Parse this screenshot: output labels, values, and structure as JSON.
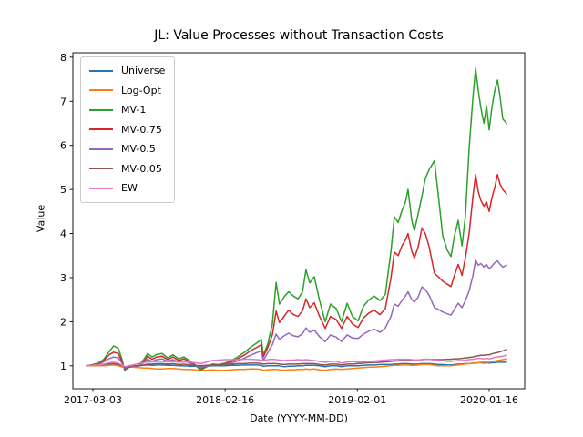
{
  "figure": {
    "background": "#ffffff"
  },
  "chart_data": {
    "type": "line",
    "title": "JL: Value Processes without Transaction Costs",
    "xlabel": "Date (YYYY-MM-DD)",
    "ylabel": "Value",
    "grid": false,
    "legend_position": "upper left",
    "x_tick_labels": [
      "2017-03-03",
      "2018-02-16",
      "2019-02-01",
      "2020-01-16"
    ],
    "y_tick_labels": [
      "1",
      "2",
      "3",
      "4",
      "5",
      "6",
      "7",
      "8"
    ],
    "ylim": [
      0.48,
      8.1
    ],
    "xlim_dates": [
      "2017-01-09",
      "2020-04-19"
    ],
    "dates": [
      "2017-02-14",
      "2017-03-03",
      "2017-03-17",
      "2017-04-01",
      "2017-04-15",
      "2017-04-27",
      "2017-05-09",
      "2017-05-19",
      "2017-05-26",
      "2017-06-05",
      "2017-06-17",
      "2017-07-01",
      "2017-07-16",
      "2017-07-26",
      "2017-08-07",
      "2017-08-19",
      "2017-09-02",
      "2017-09-17",
      "2017-10-01",
      "2017-10-16",
      "2017-10-30",
      "2017-11-14",
      "2017-11-28",
      "2017-12-13",
      "2017-12-27",
      "2018-01-13",
      "2018-01-30",
      "2018-02-16",
      "2018-03-04",
      "2018-03-21",
      "2018-04-07",
      "2018-04-24",
      "2018-05-11",
      "2018-05-23",
      "2018-05-28",
      "2018-06-09",
      "2018-06-21",
      "2018-07-01",
      "2018-07-10",
      "2018-07-22",
      "2018-08-03",
      "2018-08-16",
      "2018-08-28",
      "2018-09-09",
      "2018-09-18",
      "2018-09-28",
      "2018-10-10",
      "2018-10-24",
      "2018-11-08",
      "2018-11-22",
      "2018-12-07",
      "2018-12-21",
      "2019-01-05",
      "2019-01-19",
      "2019-02-03",
      "2019-02-17",
      "2019-03-04",
      "2019-03-18",
      "2019-04-02",
      "2019-04-16",
      "2019-05-01",
      "2019-05-10",
      "2019-05-20",
      "2019-05-30",
      "2019-06-08",
      "2019-06-15",
      "2019-06-25",
      "2019-07-02",
      "2019-07-12",
      "2019-07-22",
      "2019-07-31",
      "2019-08-10",
      "2019-08-24",
      "2019-09-03",
      "2019-09-15",
      "2019-09-27",
      "2019-10-07",
      "2019-10-16",
      "2019-10-26",
      "2019-11-05",
      "2019-11-14",
      "2019-11-24",
      "2019-12-04",
      "2019-12-11",
      "2019-12-18",
      "2019-12-25",
      "2020-01-02",
      "2020-01-09",
      "2020-01-16",
      "2020-01-23",
      "2020-01-31",
      "2020-02-07",
      "2020-02-14",
      "2020-02-21",
      "2020-03-02"
    ],
    "series": [
      {
        "name": "Universe",
        "color": "#1f77b4",
        "values": [
          1.0,
          1.01,
          1.02,
          1.02,
          1.03,
          1.03,
          1.02,
          1.0,
          0.97,
          0.99,
          1.0,
          1.0,
          1.01,
          1.02,
          1.01,
          1.02,
          1.02,
          1.01,
          1.01,
          1.0,
          1.0,
          0.99,
          0.99,
          0.97,
          0.99,
          1.0,
          1.0,
          1.0,
          1.01,
          1.01,
          1.02,
          1.02,
          1.02,
          1.01,
          0.99,
          1.0,
          1.0,
          1.0,
          1.0,
          0.98,
          0.99,
          0.99,
          1.0,
          1.0,
          1.01,
          1.01,
          1.01,
          1.0,
          0.98,
          1.0,
          1.0,
          0.98,
          1.0,
          1.0,
          1.0,
          1.01,
          1.02,
          1.02,
          1.03,
          1.03,
          1.03,
          1.04,
          1.04,
          1.05,
          1.05,
          1.05,
          1.04,
          1.04,
          1.04,
          1.05,
          1.05,
          1.05,
          1.04,
          1.03,
          1.03,
          1.02,
          1.02,
          1.03,
          1.04,
          1.04,
          1.05,
          1.05,
          1.06,
          1.06,
          1.07,
          1.07,
          1.06,
          1.07,
          1.06,
          1.07,
          1.07,
          1.08,
          1.08,
          1.08,
          1.08
        ]
      },
      {
        "name": "Log-Opt",
        "color": "#ff7f0e",
        "values": [
          1.0,
          1.0,
          1.0,
          1.0,
          1.01,
          1.02,
          1.0,
          0.98,
          0.96,
          0.97,
          0.97,
          0.96,
          0.95,
          0.95,
          0.94,
          0.93,
          0.93,
          0.94,
          0.94,
          0.93,
          0.92,
          0.92,
          0.91,
          0.9,
          0.9,
          0.91,
          0.9,
          0.9,
          0.91,
          0.92,
          0.92,
          0.93,
          0.93,
          0.92,
          0.9,
          0.91,
          0.92,
          0.92,
          0.91,
          0.9,
          0.91,
          0.91,
          0.92,
          0.92,
          0.93,
          0.92,
          0.93,
          0.91,
          0.9,
          0.92,
          0.93,
          0.92,
          0.93,
          0.94,
          0.95,
          0.96,
          0.97,
          0.97,
          0.98,
          0.99,
          1.0,
          1.01,
          1.01,
          1.02,
          1.02,
          1.02,
          1.01,
          1.01,
          1.02,
          1.03,
          1.03,
          1.03,
          1.01,
          1.0,
          1.0,
          1.0,
          1.0,
          1.01,
          1.02,
          1.03,
          1.04,
          1.05,
          1.06,
          1.06,
          1.07,
          1.08,
          1.08,
          1.08,
          1.08,
          1.1,
          1.11,
          1.12,
          1.13,
          1.14,
          1.16
        ]
      },
      {
        "name": "MV-1",
        "color": "#2ca02c",
        "values": [
          1.0,
          1.03,
          1.06,
          1.15,
          1.32,
          1.45,
          1.4,
          1.15,
          0.9,
          0.96,
          1.0,
          0.99,
          1.15,
          1.28,
          1.2,
          1.26,
          1.28,
          1.18,
          1.25,
          1.16,
          1.2,
          1.12,
          1.03,
          0.9,
          0.97,
          1.04,
          1.03,
          1.06,
          1.12,
          1.2,
          1.3,
          1.42,
          1.52,
          1.6,
          1.24,
          1.5,
          1.95,
          2.89,
          2.4,
          2.56,
          2.68,
          2.58,
          2.52,
          2.68,
          3.18,
          2.88,
          3.02,
          2.48,
          2.0,
          2.4,
          2.3,
          2.0,
          2.42,
          2.12,
          2.02,
          2.35,
          2.5,
          2.58,
          2.48,
          2.62,
          3.6,
          4.38,
          4.25,
          4.52,
          4.7,
          5.0,
          4.3,
          4.07,
          4.45,
          4.85,
          5.25,
          5.45,
          5.65,
          4.9,
          3.95,
          3.62,
          3.48,
          3.95,
          4.3,
          3.72,
          4.4,
          5.93,
          7.1,
          7.75,
          7.25,
          6.85,
          6.5,
          6.9,
          6.35,
          6.85,
          7.25,
          7.48,
          7.1,
          6.6,
          6.5
        ]
      },
      {
        "name": "MV-0.75",
        "color": "#d62728",
        "values": [
          1.0,
          1.02,
          1.04,
          1.12,
          1.25,
          1.31,
          1.28,
          1.1,
          0.93,
          0.97,
          1.0,
          0.99,
          1.1,
          1.22,
          1.15,
          1.2,
          1.22,
          1.14,
          1.2,
          1.12,
          1.16,
          1.09,
          1.02,
          0.94,
          0.98,
          1.03,
          1.02,
          1.04,
          1.1,
          1.16,
          1.24,
          1.34,
          1.42,
          1.48,
          1.2,
          1.42,
          1.7,
          2.24,
          1.98,
          2.12,
          2.26,
          2.16,
          2.12,
          2.25,
          2.52,
          2.32,
          2.43,
          2.12,
          1.85,
          2.12,
          2.05,
          1.85,
          2.12,
          1.95,
          1.87,
          2.08,
          2.2,
          2.26,
          2.16,
          2.3,
          3.0,
          3.58,
          3.5,
          3.72,
          3.85,
          4.0,
          3.6,
          3.45,
          3.7,
          4.13,
          4.0,
          3.7,
          3.1,
          3.02,
          2.92,
          2.85,
          2.8,
          3.05,
          3.3,
          3.05,
          3.45,
          4.0,
          4.85,
          5.34,
          4.95,
          4.75,
          4.62,
          4.72,
          4.5,
          4.8,
          5.05,
          5.34,
          5.12,
          5.0,
          4.9
        ]
      },
      {
        "name": "MV-0.5",
        "color": "#9467bd",
        "values": [
          1.0,
          1.01,
          1.03,
          1.09,
          1.16,
          1.2,
          1.18,
          1.06,
          0.95,
          0.98,
          1.0,
          0.99,
          1.07,
          1.15,
          1.1,
          1.14,
          1.16,
          1.1,
          1.14,
          1.08,
          1.11,
          1.06,
          1.01,
          0.96,
          0.99,
          1.02,
          1.01,
          1.03,
          1.07,
          1.11,
          1.17,
          1.24,
          1.3,
          1.34,
          1.12,
          1.3,
          1.48,
          1.72,
          1.6,
          1.68,
          1.74,
          1.68,
          1.66,
          1.73,
          1.86,
          1.76,
          1.81,
          1.66,
          1.55,
          1.7,
          1.65,
          1.55,
          1.7,
          1.63,
          1.62,
          1.72,
          1.79,
          1.83,
          1.76,
          1.86,
          2.12,
          2.4,
          2.35,
          2.48,
          2.58,
          2.68,
          2.5,
          2.45,
          2.56,
          2.79,
          2.73,
          2.6,
          2.32,
          2.28,
          2.22,
          2.18,
          2.15,
          2.28,
          2.42,
          2.32,
          2.48,
          2.7,
          3.05,
          3.4,
          3.28,
          3.32,
          3.24,
          3.3,
          3.2,
          3.26,
          3.34,
          3.38,
          3.3,
          3.24,
          3.28
        ]
      },
      {
        "name": "MV-0.05",
        "color": "#8c564b",
        "values": [
          1.0,
          1.01,
          1.02,
          1.03,
          1.05,
          1.05,
          1.04,
          1.01,
          0.97,
          0.99,
          1.0,
          1.0,
          1.02,
          1.04,
          1.04,
          1.05,
          1.05,
          1.04,
          1.05,
          1.03,
          1.04,
          1.02,
          1.01,
          1.0,
          1.01,
          1.02,
          1.02,
          1.03,
          1.04,
          1.05,
          1.05,
          1.06,
          1.06,
          1.05,
          1.04,
          1.05,
          1.05,
          1.05,
          1.04,
          1.03,
          1.04,
          1.04,
          1.04,
          1.05,
          1.05,
          1.05,
          1.05,
          1.03,
          1.02,
          1.04,
          1.04,
          1.02,
          1.04,
          1.04,
          1.05,
          1.06,
          1.07,
          1.07,
          1.08,
          1.09,
          1.1,
          1.11,
          1.11,
          1.12,
          1.12,
          1.12,
          1.12,
          1.13,
          1.13,
          1.14,
          1.15,
          1.15,
          1.14,
          1.14,
          1.14,
          1.15,
          1.15,
          1.16,
          1.16,
          1.17,
          1.18,
          1.19,
          1.2,
          1.22,
          1.23,
          1.24,
          1.24,
          1.25,
          1.25,
          1.27,
          1.29,
          1.3,
          1.32,
          1.34,
          1.37
        ]
      },
      {
        "name": "EW",
        "color": "#e377c2",
        "values": [
          1.0,
          1.01,
          1.02,
          1.04,
          1.07,
          1.08,
          1.06,
          1.02,
          0.98,
          1.0,
          1.02,
          1.05,
          1.07,
          1.09,
          1.09,
          1.1,
          1.1,
          1.09,
          1.1,
          1.08,
          1.09,
          1.08,
          1.07,
          1.05,
          1.08,
          1.12,
          1.13,
          1.14,
          1.14,
          1.14,
          1.15,
          1.15,
          1.14,
          1.13,
          1.12,
          1.14,
          1.15,
          1.14,
          1.13,
          1.12,
          1.13,
          1.13,
          1.14,
          1.13,
          1.14,
          1.13,
          1.12,
          1.1,
          1.08,
          1.1,
          1.1,
          1.06,
          1.09,
          1.1,
          1.08,
          1.09,
          1.1,
          1.11,
          1.12,
          1.13,
          1.14,
          1.14,
          1.15,
          1.15,
          1.15,
          1.15,
          1.14,
          1.13,
          1.13,
          1.14,
          1.15,
          1.15,
          1.13,
          1.12,
          1.12,
          1.1,
          1.1,
          1.11,
          1.12,
          1.12,
          1.13,
          1.14,
          1.15,
          1.16,
          1.17,
          1.17,
          1.16,
          1.17,
          1.16,
          1.17,
          1.19,
          1.2,
          1.21,
          1.22,
          1.24
        ]
      }
    ]
  }
}
